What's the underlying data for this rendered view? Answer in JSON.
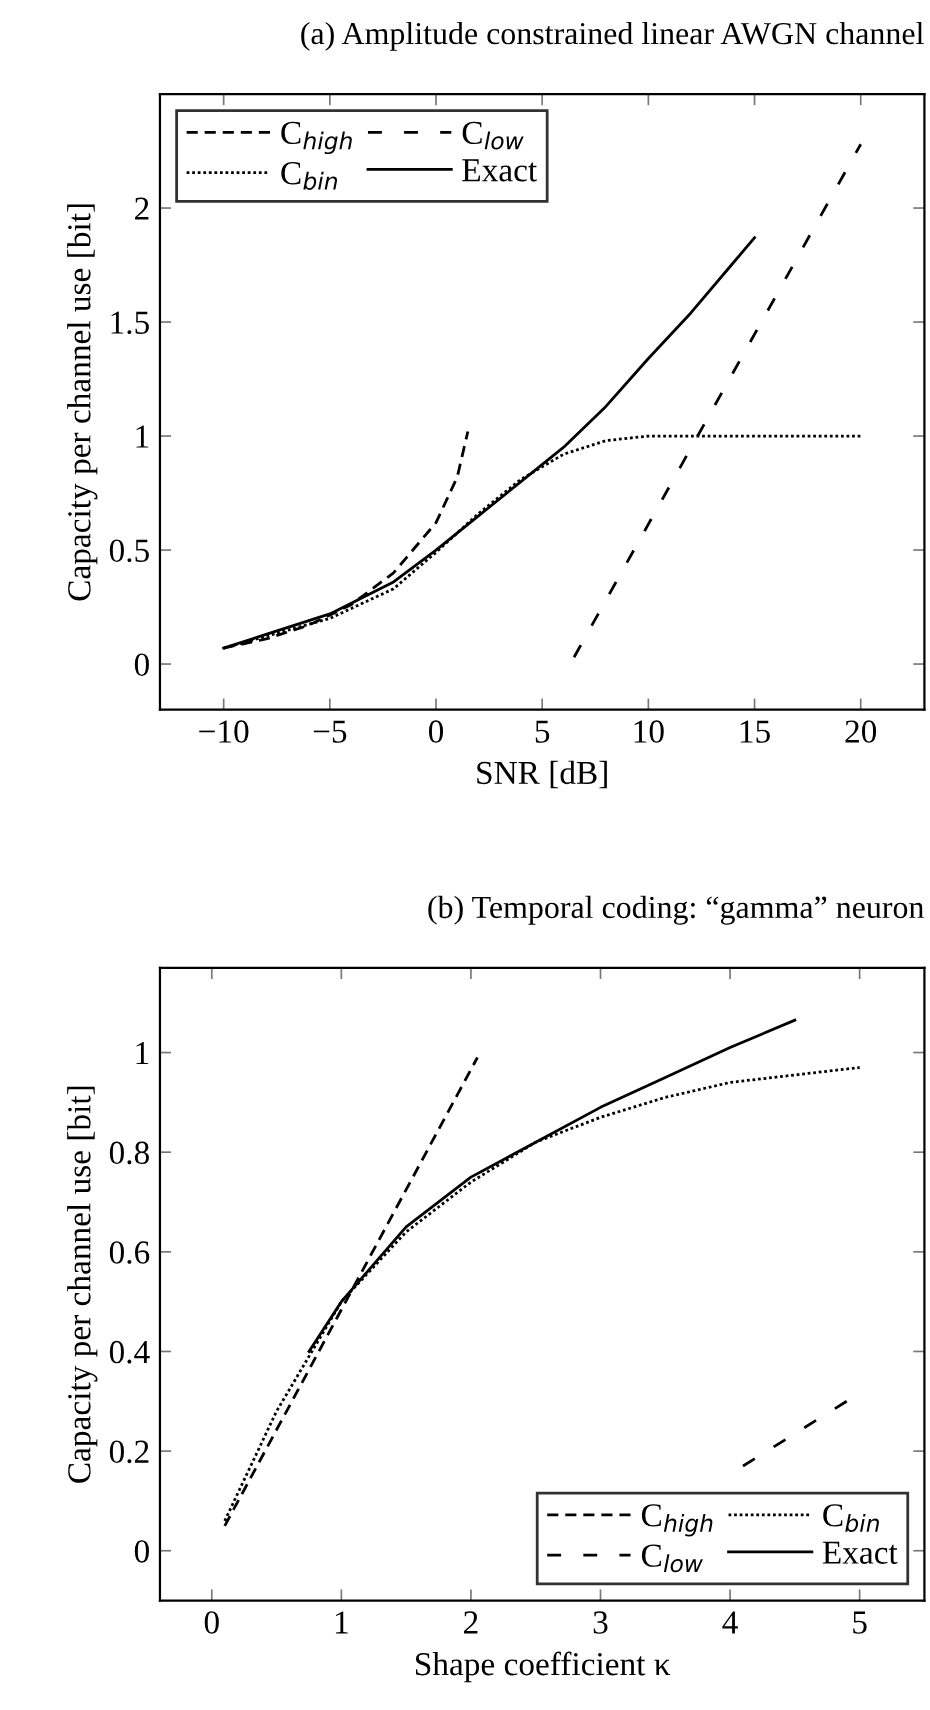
{
  "chart_data": [
    {
      "type": "line",
      "title": "(a) Amplitude constrained linear AWGN channel",
      "xlabel": "SNR [dB]",
      "ylabel": "Capacity per channel use [bit]",
      "xlim": [
        -13,
        23
      ],
      "ylim": [
        -0.2,
        2.5
      ],
      "xticks": [
        -10,
        -5,
        0,
        5,
        10,
        15,
        20
      ],
      "yticks": [
        0,
        0.5,
        1,
        1.5,
        2
      ],
      "grid": false,
      "legend": "top left",
      "series": [
        {
          "name": "C$_{high}$",
          "color": "#000000",
          "line_style": "dashed",
          "x": [
            -10,
            -8,
            -6,
            -4,
            -2,
            0,
            1,
            1.5
          ],
          "values": [
            0.07,
            0.11,
            0.17,
            0.26,
            0.4,
            0.62,
            0.82,
            1.02
          ]
        },
        {
          "name": "C$_{bin}$",
          "color": "#000000",
          "line_style": "dotted",
          "x": [
            -10,
            -5,
            -2,
            0,
            2,
            4,
            6,
            8,
            10,
            20
          ],
          "values": [
            0.07,
            0.2,
            0.33,
            0.49,
            0.66,
            0.81,
            0.92,
            0.98,
            1.0,
            1.0
          ]
        },
        {
          "name": "C$_{low}$",
          "color": "#000000",
          "line_style": "loosely dashed",
          "x": [
            6.5,
            20
          ],
          "values": [
            0.03,
            2.28
          ]
        },
        {
          "name": "Exact",
          "color": "#000000",
          "line_style": "solid",
          "x": [
            -10,
            -5,
            -2,
            0,
            2,
            4,
            6,
            8,
            10,
            12,
            14,
            15
          ],
          "values": [
            0.07,
            0.22,
            0.36,
            0.5,
            0.65,
            0.8,
            0.95,
            1.13,
            1.34,
            1.54,
            1.76,
            1.87
          ]
        }
      ]
    },
    {
      "type": "line",
      "title": "(b) Temporal coding: “gamma” neuron",
      "xlabel": "Shape coefficient κ",
      "ylabel": "Capacity per channel use [bit]",
      "xlim": [
        -0.4,
        5.5
      ],
      "ylim": [
        -0.1,
        1.17
      ],
      "xticks": [
        0,
        1,
        2,
        3,
        4,
        5
      ],
      "yticks": [
        0,
        0.2,
        0.4,
        0.6,
        0.8,
        1
      ],
      "grid": false,
      "legend": "bottom right",
      "series": [
        {
          "name": "C$_{high}$",
          "color": "#000000",
          "line_style": "dashed",
          "x": [
            0.1,
            2.05
          ],
          "values": [
            0.05,
            0.99
          ]
        },
        {
          "name": "C$_{low}$",
          "color": "#000000",
          "line_style": "loosely dashed",
          "x": [
            4.1,
            4.9
          ],
          "values": [
            0.17,
            0.3
          ]
        },
        {
          "name": "C$_{bin}$",
          "color": "#000000",
          "line_style": "dotted",
          "x": [
            0.1,
            0.5,
            1,
            1.5,
            2,
            2.5,
            3,
            3.5,
            4,
            4.5,
            5
          ],
          "values": [
            0.06,
            0.28,
            0.5,
            0.64,
            0.74,
            0.82,
            0.87,
            0.91,
            0.94,
            0.955,
            0.97
          ]
        },
        {
          "name": "Exact",
          "color": "#000000",
          "line_style": "solid",
          "x": [
            0.75,
            1,
            1.5,
            2,
            2.5,
            3,
            3.5,
            4,
            4.5
          ],
          "values": [
            0.4,
            0.5,
            0.65,
            0.75,
            0.82,
            0.89,
            0.95,
            1.01,
            1.065
          ]
        }
      ]
    }
  ]
}
